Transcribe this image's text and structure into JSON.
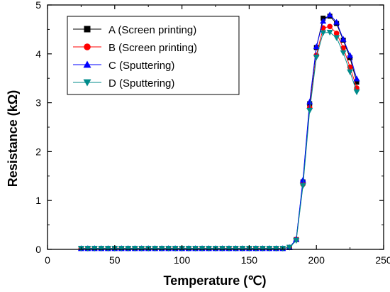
{
  "chart_data": {
    "type": "line",
    "xlabel": "Temperature (℃)",
    "ylabel": "Resistance (kΩ)",
    "xlim": [
      0,
      250
    ],
    "ylim": [
      0,
      5
    ],
    "xticks": [
      0,
      50,
      100,
      150,
      200,
      250
    ],
    "yticks": [
      0,
      1,
      2,
      3,
      4,
      5
    ],
    "grid": false,
    "legend_position": "top-left",
    "x": [
      25,
      30,
      35,
      40,
      45,
      50,
      55,
      60,
      65,
      70,
      75,
      80,
      85,
      90,
      95,
      100,
      105,
      110,
      115,
      120,
      125,
      130,
      135,
      140,
      145,
      150,
      155,
      160,
      165,
      170,
      175,
      180,
      185,
      190,
      195,
      200,
      205,
      210,
      215,
      220,
      225,
      230
    ],
    "series": [
      {
        "name": "A (Screen printing)",
        "color": "#000000",
        "marker": "square",
        "values": [
          0.02,
          0.02,
          0.02,
          0.02,
          0.02,
          0.02,
          0.02,
          0.02,
          0.02,
          0.02,
          0.02,
          0.02,
          0.02,
          0.02,
          0.02,
          0.02,
          0.02,
          0.02,
          0.02,
          0.02,
          0.02,
          0.02,
          0.02,
          0.02,
          0.02,
          0.02,
          0.02,
          0.02,
          0.02,
          0.02,
          0.02,
          0.04,
          0.2,
          1.38,
          2.98,
          4.13,
          4.73,
          4.77,
          4.62,
          4.28,
          3.92,
          3.42
        ]
      },
      {
        "name": "B (Screen printing)",
        "color": "#ff0000",
        "marker": "circle",
        "values": [
          0.02,
          0.02,
          0.02,
          0.02,
          0.02,
          0.02,
          0.02,
          0.02,
          0.02,
          0.02,
          0.02,
          0.02,
          0.02,
          0.02,
          0.02,
          0.02,
          0.02,
          0.02,
          0.02,
          0.02,
          0.02,
          0.02,
          0.02,
          0.02,
          0.02,
          0.02,
          0.02,
          0.02,
          0.02,
          0.02,
          0.02,
          0.04,
          0.2,
          1.33,
          2.9,
          3.97,
          4.53,
          4.56,
          4.42,
          4.12,
          3.73,
          3.3
        ]
      },
      {
        "name": "C (Sputtering)",
        "color": "#0000ff",
        "marker": "triangle-up",
        "values": [
          0.02,
          0.02,
          0.02,
          0.02,
          0.02,
          0.02,
          0.02,
          0.02,
          0.02,
          0.02,
          0.02,
          0.02,
          0.02,
          0.02,
          0.02,
          0.02,
          0.02,
          0.02,
          0.02,
          0.02,
          0.02,
          0.02,
          0.02,
          0.02,
          0.02,
          0.02,
          0.02,
          0.02,
          0.02,
          0.02,
          0.02,
          0.04,
          0.21,
          1.42,
          3.02,
          4.15,
          4.67,
          4.8,
          4.65,
          4.3,
          3.97,
          3.49
        ]
      },
      {
        "name": "D (Sputtering)",
        "color": "#008b8b",
        "marker": "triangle-down",
        "values": [
          0.02,
          0.02,
          0.02,
          0.02,
          0.02,
          0.02,
          0.02,
          0.02,
          0.02,
          0.02,
          0.02,
          0.02,
          0.02,
          0.02,
          0.02,
          0.02,
          0.02,
          0.02,
          0.02,
          0.02,
          0.02,
          0.02,
          0.02,
          0.02,
          0.02,
          0.02,
          0.02,
          0.02,
          0.02,
          0.02,
          0.02,
          0.04,
          0.18,
          1.3,
          2.84,
          3.93,
          4.43,
          4.44,
          4.33,
          4.02,
          3.63,
          3.22
        ]
      }
    ]
  }
}
